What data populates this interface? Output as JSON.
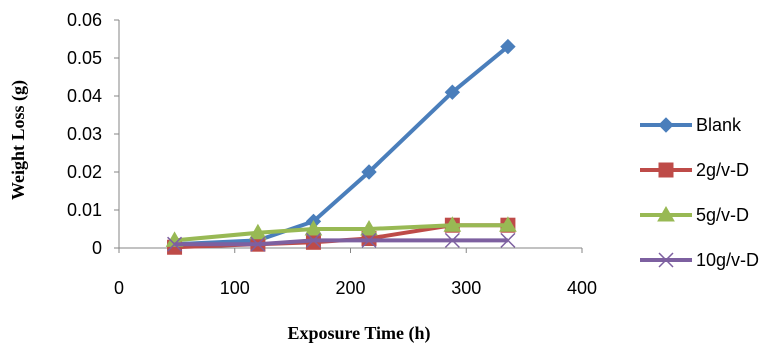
{
  "chart_data": {
    "type": "line",
    "title": "",
    "xlabel": "Exposure Time (h)",
    "ylabel": "Weight Loss (g)",
    "xlim": [
      0,
      400
    ],
    "ylim": [
      0,
      0.06
    ],
    "xticks": [
      "0",
      "100",
      "200",
      "300",
      "400"
    ],
    "yticks": [
      "0",
      "0.01",
      "0.02",
      "0.03",
      "0.04",
      "0.05",
      "0.06"
    ],
    "grid": false,
    "legend_position": "right",
    "series": [
      {
        "name": "Blank",
        "color": "#4a7ebb",
        "marker": "diamond",
        "points": [
          [
            48,
            0.001
          ],
          [
            120,
            0.002
          ],
          [
            168,
            0.007
          ],
          [
            216,
            0.02
          ],
          [
            288,
            0.041
          ],
          [
            336,
            0.053
          ]
        ]
      },
      {
        "name": "2g/v-D",
        "color": "#be4b48",
        "marker": "square",
        "points": [
          [
            48,
            0.0002
          ],
          [
            120,
            0.001
          ],
          [
            168,
            0.0015
          ],
          [
            216,
            0.0025
          ],
          [
            288,
            0.006
          ],
          [
            336,
            0.006
          ]
        ]
      },
      {
        "name": "5g/v-D",
        "color": "#98b954",
        "marker": "triangle",
        "points": [
          [
            48,
            0.002
          ],
          [
            120,
            0.004
          ],
          [
            168,
            0.005
          ],
          [
            216,
            0.005
          ],
          [
            288,
            0.006
          ],
          [
            336,
            0.006
          ]
        ]
      },
      {
        "name": "10g/v-D",
        "color": "#7d60a0",
        "marker": "x",
        "points": [
          [
            48,
            0.001
          ],
          [
            120,
            0.001
          ],
          [
            168,
            0.002
          ],
          [
            216,
            0.002
          ],
          [
            288,
            0.002
          ],
          [
            336,
            0.002
          ]
        ]
      }
    ]
  }
}
